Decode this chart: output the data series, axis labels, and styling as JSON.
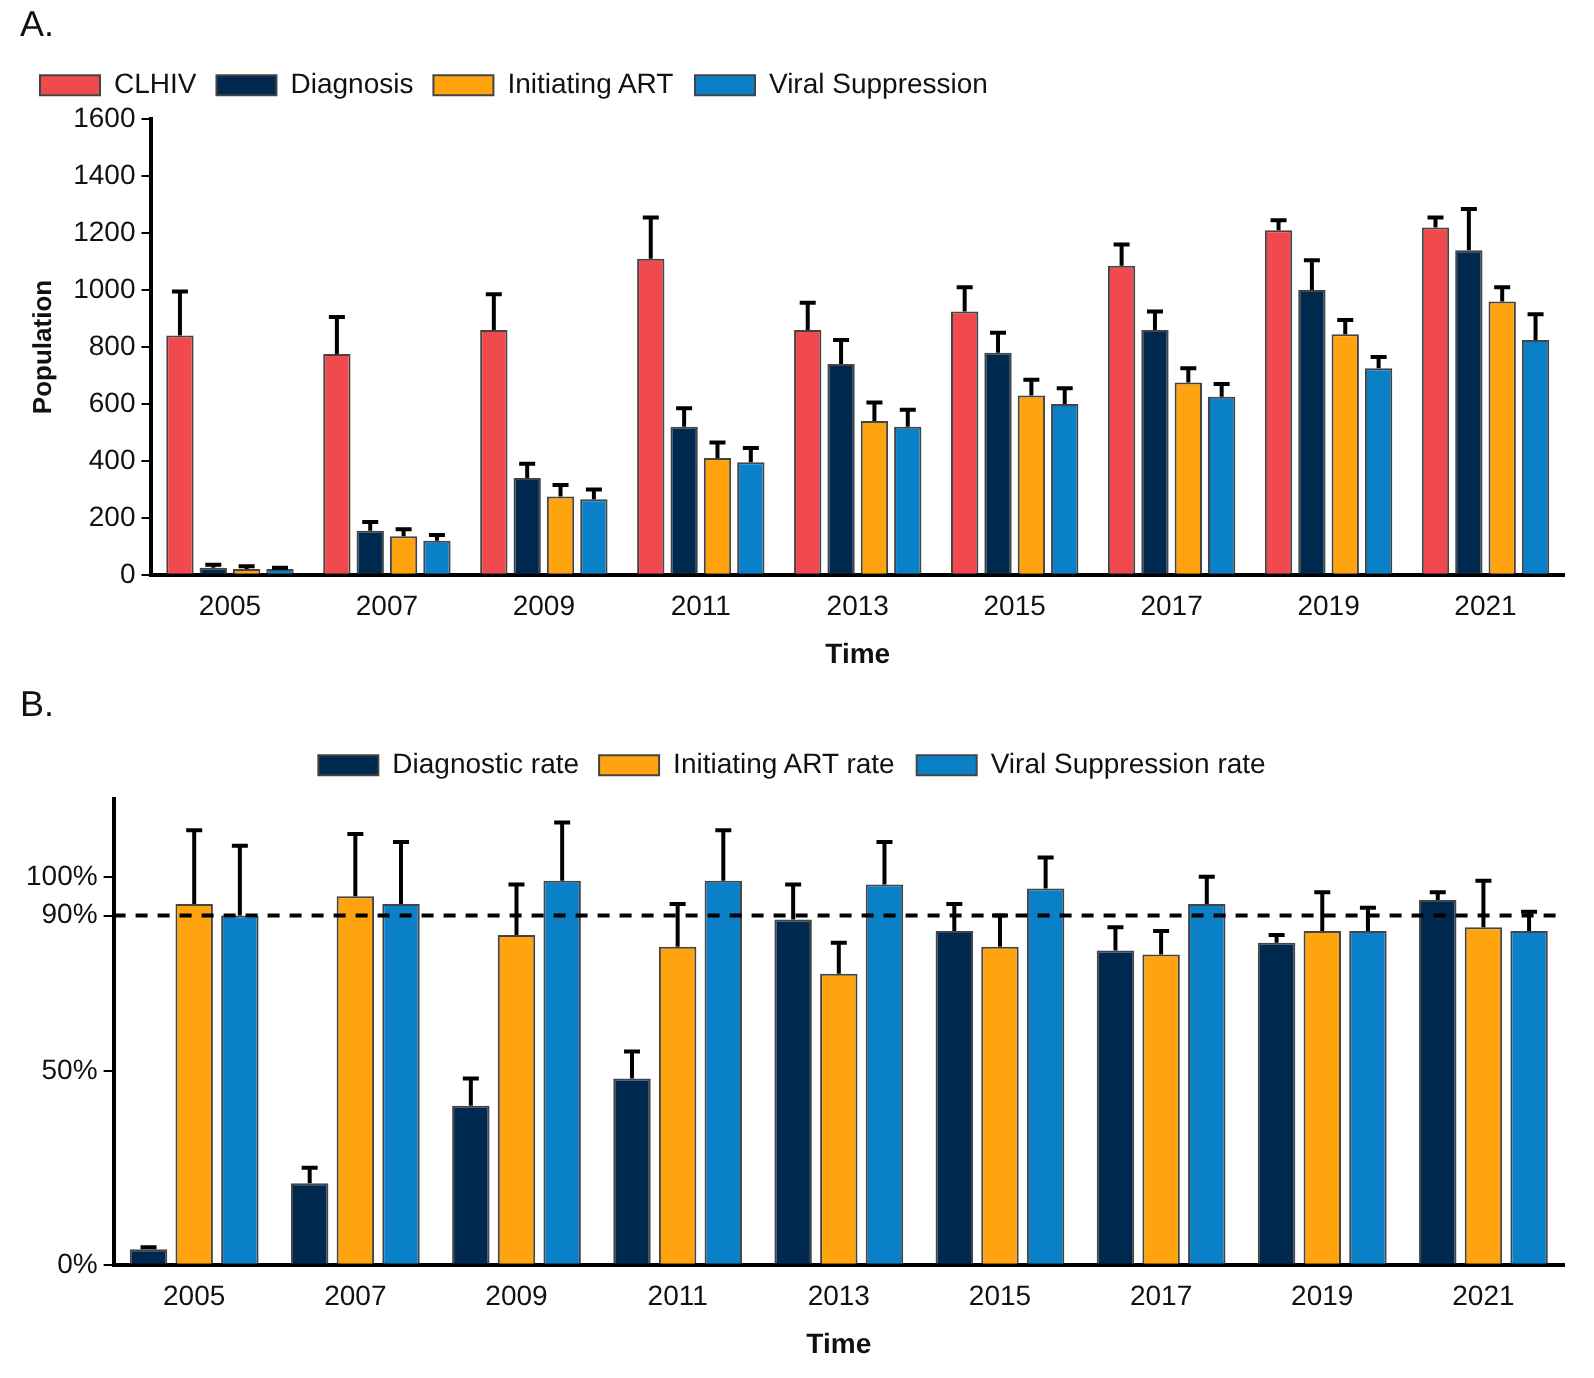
{
  "chart_data": [
    {
      "type": "bar",
      "title": "A.",
      "xlabel": "Time",
      "ylabel": "Population",
      "categories": [
        "2005",
        "2007",
        "2009",
        "2011",
        "2013",
        "2015",
        "2017",
        "2019",
        "2021"
      ],
      "series": [
        {
          "name": "CLHIV",
          "color": "#f04a4f",
          "values": [
            840,
            775,
            860,
            1110,
            860,
            925,
            1085,
            1210,
            1220
          ],
          "errors": [
            [
              840,
              995
            ],
            [
              775,
              905
            ],
            [
              860,
              985
            ],
            [
              1110,
              1255
            ],
            [
              860,
              955
            ],
            [
              925,
              1010
            ],
            [
              1085,
              1160
            ],
            [
              1210,
              1245
            ],
            [
              1220,
              1255
            ]
          ]
        },
        {
          "name": "Diagnosis",
          "color": "#00294f",
          "values": [
            25,
            155,
            340,
            520,
            740,
            780,
            860,
            1000,
            1140
          ],
          "errors": [
            [
              25,
              35
            ],
            [
              155,
              185
            ],
            [
              340,
              390
            ],
            [
              520,
              585
            ],
            [
              740,
              825
            ],
            [
              780,
              850
            ],
            [
              860,
              925
            ],
            [
              1000,
              1105
            ],
            [
              1140,
              1285
            ]
          ]
        },
        {
          "name": "Initiating ART",
          "color": "#ffa30f",
          "values": [
            20,
            135,
            275,
            410,
            540,
            630,
            675,
            845,
            960
          ],
          "errors": [
            [
              20,
              30
            ],
            [
              135,
              160
            ],
            [
              275,
              315
            ],
            [
              410,
              465
            ],
            [
              540,
              605
            ],
            [
              630,
              685
            ],
            [
              675,
              725
            ],
            [
              845,
              895
            ],
            [
              960,
              1010
            ]
          ]
        },
        {
          "name": "Viral Suppression",
          "color": "#0a80c8",
          "values": [
            20,
            120,
            265,
            395,
            520,
            600,
            625,
            725,
            825
          ],
          "errors": [
            [
              20,
              25
            ],
            [
              120,
              140
            ],
            [
              265,
              300
            ],
            [
              395,
              445
            ],
            [
              520,
              580
            ],
            [
              600,
              655
            ],
            [
              625,
              670
            ],
            [
              725,
              765
            ],
            [
              825,
              915
            ]
          ]
        }
      ],
      "ylim": [
        0,
        1600
      ],
      "yticks": [
        0,
        200,
        400,
        600,
        800,
        1000,
        1200,
        1400,
        1600
      ],
      "grid": false,
      "legend": "top left"
    },
    {
      "type": "bar",
      "title": "B.",
      "xlabel": "Time",
      "categories": [
        "2005",
        "2007",
        "2009",
        "2011",
        "2013",
        "2015",
        "2017",
        "2019",
        "2021"
      ],
      "series": [
        {
          "name": "Diagnostic rate",
          "color": "#00294f",
          "values": [
            4,
            21,
            41,
            48,
            89,
            86,
            81,
            83,
            94
          ],
          "errors": [
            [
              4,
              4.5
            ],
            [
              21,
              25
            ],
            [
              41,
              48
            ],
            [
              48,
              55
            ],
            [
              89,
              98
            ],
            [
              86,
              93
            ],
            [
              81,
              87
            ],
            [
              83,
              85
            ],
            [
              94,
              96
            ]
          ]
        },
        {
          "name": "Initiating ART rate",
          "color": "#ffa30f",
          "values": [
            93,
            95,
            85,
            82,
            75,
            82,
            80,
            86,
            87
          ],
          "errors": [
            [
              93,
              112
            ],
            [
              95,
              111
            ],
            [
              85,
              98
            ],
            [
              82,
              93
            ],
            [
              75,
              83
            ],
            [
              82,
              90
            ],
            [
              80,
              86
            ],
            [
              86,
              96
            ],
            [
              87,
              99
            ]
          ]
        },
        {
          "name": "Viral Suppression rate",
          "color": "#0a80c8",
          "values": [
            90,
            93,
            99,
            99,
            98,
            97,
            93,
            86,
            86
          ],
          "errors": [
            [
              90,
              108
            ],
            [
              93,
              109
            ],
            [
              99,
              114
            ],
            [
              99,
              112
            ],
            [
              98,
              109
            ],
            [
              97,
              105
            ],
            [
              93,
              100
            ],
            [
              86,
              92
            ],
            [
              86,
              91
            ]
          ]
        }
      ],
      "ylim": [
        0,
        120
      ],
      "yticks": [
        {
          "value": 0,
          "label": "0%"
        },
        {
          "value": 50,
          "label": "50%"
        },
        {
          "value": 90,
          "label": "90%"
        },
        {
          "value": 100,
          "label": "100%"
        }
      ],
      "ref_lines": [
        {
          "axis": "y",
          "value": 90,
          "color": "#000000",
          "line_style": "dashed"
        }
      ],
      "grid": false,
      "legend": "top"
    }
  ]
}
